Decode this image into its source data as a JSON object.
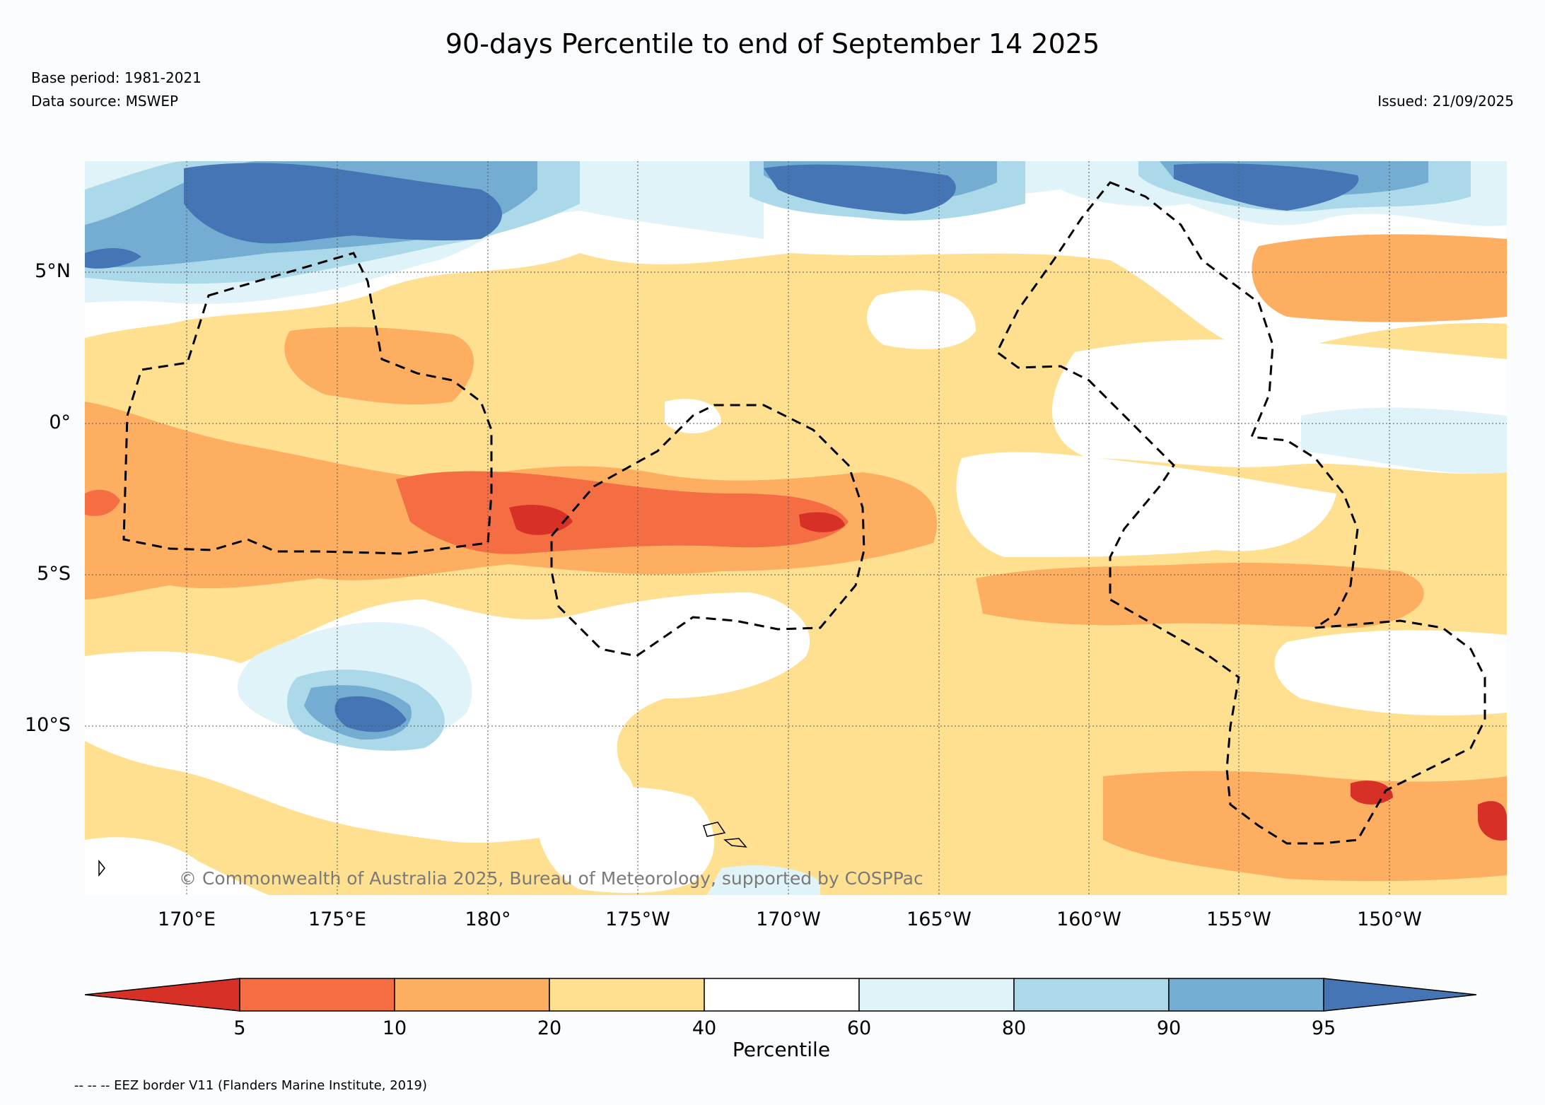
{
  "title": "90-days Percentile to end of September 14 2025",
  "base_period": "Base period: 1981-2021",
  "data_source": "Data source: MSWEP",
  "issued": "Issued: 21/09/2025",
  "copyright": "© Commonwealth of Australia 2025, Bureau of Meteorology, supported by COSPPac",
  "footnote": "-- -- -- EEZ border V11 (Flanders Marine Institute, 2019)",
  "lat_labels": [
    "5°N",
    "0°",
    "5°S",
    "10°S"
  ],
  "lon_labels": [
    "170°E",
    "175°E",
    "180°",
    "175°W",
    "170°W",
    "165°W",
    "160°W",
    "155°W",
    "150°W"
  ],
  "colorbar": {
    "title": "Percentile",
    "ticks": [
      "5",
      "10",
      "20",
      "40",
      "60",
      "80",
      "90",
      "95"
    ],
    "colors": [
      "#d73027",
      "#f46d43",
      "#fdae61",
      "#fee090",
      "#ffffff",
      "#e0f3f8",
      "#abd9e9",
      "#74add1",
      "#4575b4"
    ]
  },
  "colors": {
    "below_5": "#d73027",
    "p5_10": "#f46d43",
    "p10_20": "#fdae61",
    "p20_40": "#fee090",
    "p40_60": "#ffffff",
    "p60_80": "#e0f3f8",
    "p80_90": "#abd9e9",
    "p90_95": "#74add1",
    "above_95": "#4575b4"
  }
}
